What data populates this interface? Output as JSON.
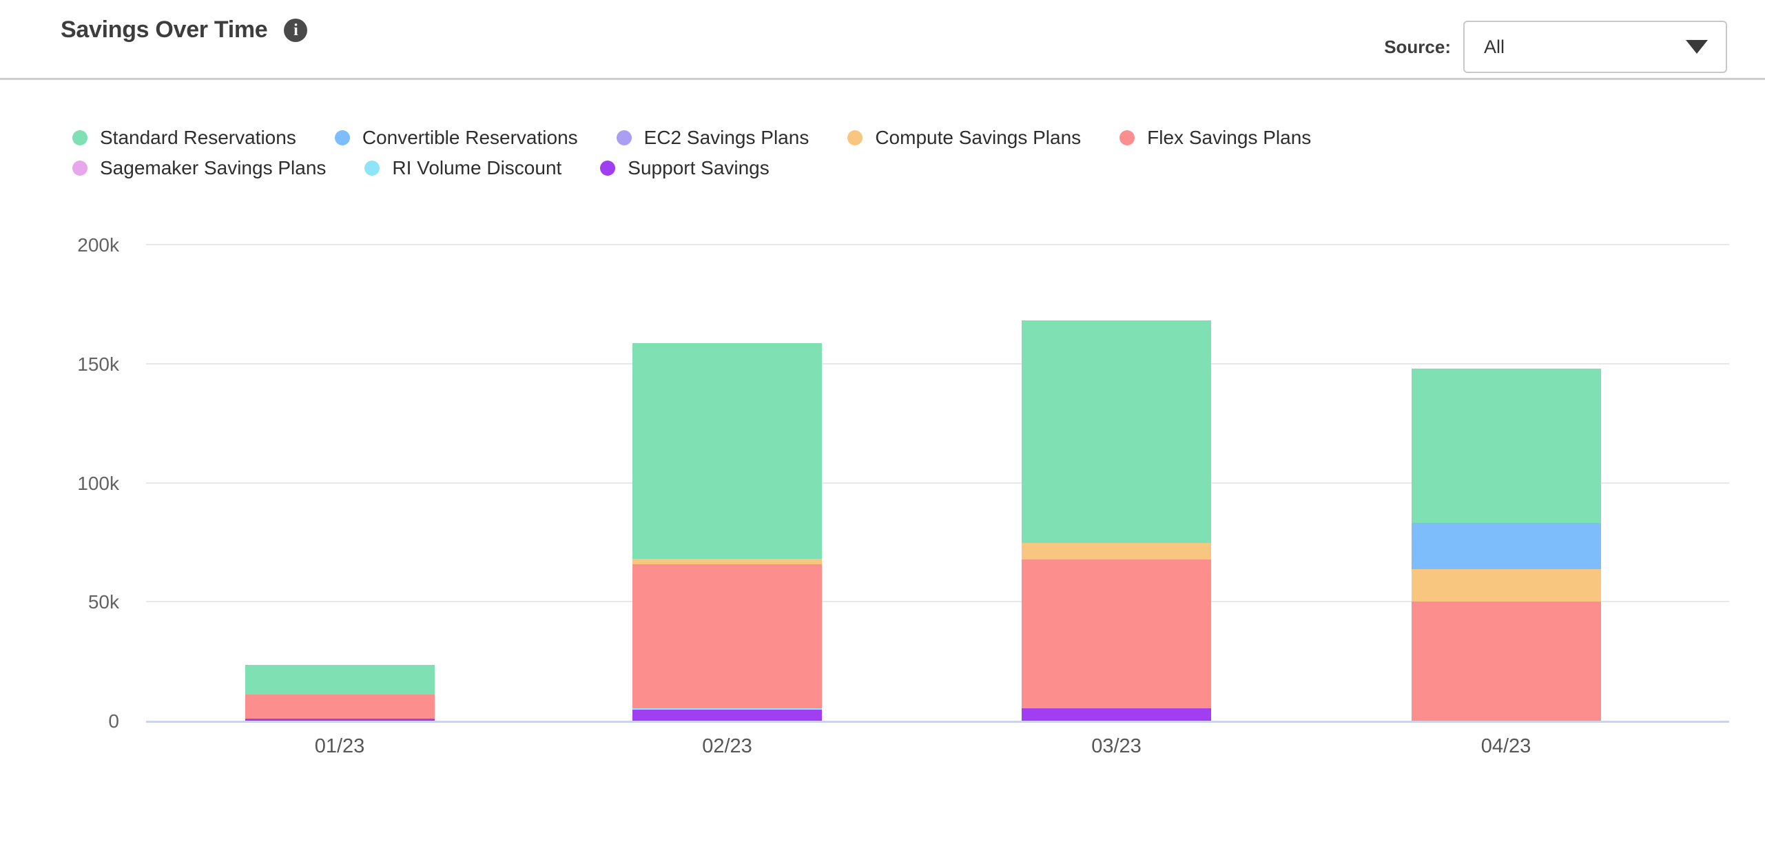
{
  "header": {
    "title": "Savings Over Time",
    "info_icon": "info-circle",
    "source_label": "Source:",
    "source_value": "All"
  },
  "chart_data": {
    "type": "bar",
    "stacked": true,
    "title": "Savings Over Time",
    "categories": [
      "01/23",
      "02/23",
      "03/23",
      "04/23"
    ],
    "series": [
      {
        "name": "Standard Reservations",
        "color": "#7ee0b3",
        "values_k": [
          12.4,
          90.6,
          93.5,
          64.7
        ]
      },
      {
        "name": "Convertible Reservations",
        "color": "#7dbdfc",
        "values_k": [
          0,
          0,
          0,
          19.4
        ]
      },
      {
        "name": "EC2 Savings Plans",
        "color": "#a99ef2",
        "values_k": [
          0,
          0,
          0,
          0
        ]
      },
      {
        "name": "Compute Savings Plans",
        "color": "#f9c680",
        "values_k": [
          0,
          2.4,
          7,
          13.7
        ]
      },
      {
        "name": "Flex Savings Plans",
        "color": "#fc8e8e",
        "values_k": [
          10,
          60.3,
          62.3,
          50
        ]
      },
      {
        "name": "Sagemaker Savings Plans",
        "color": "#e8a6ec",
        "values_k": [
          0,
          0,
          0,
          0
        ]
      },
      {
        "name": "RI Volume Discount",
        "color": "#8ee4f8",
        "values_k": [
          0,
          0.8,
          0,
          0
        ]
      },
      {
        "name": "Support Savings",
        "color": "#a13ef2",
        "values_k": [
          1,
          4.5,
          5.3,
          0
        ]
      }
    ],
    "stack_order_bottom_to_top": [
      7,
      6,
      5,
      4,
      3,
      2,
      1,
      0
    ],
    "totals_k": [
      23.4,
      158.6,
      168.1,
      147.8
    ],
    "yticks": [
      {
        "value_k": 0,
        "label": "0"
      },
      {
        "value_k": 50,
        "label": "50k"
      },
      {
        "value_k": 100,
        "label": "100k"
      },
      {
        "value_k": 150,
        "label": "150k"
      },
      {
        "value_k": 200,
        "label": "200k"
      }
    ],
    "ylim_k": [
      0,
      200
    ],
    "grid": true,
    "legend_position": "top-left",
    "legend_rows": [
      [
        0,
        1,
        2,
        3,
        4
      ],
      [
        5,
        6,
        7
      ]
    ]
  },
  "colors": {
    "axis_baseline": "#ccd3ea",
    "gridline": "#e8e8e8",
    "divider": "#cccccc",
    "title_text": "#3d3d3d",
    "legend_text": "#2e2e2e",
    "tick_text": "#636363",
    "dropdown_border": "#c8c8c8",
    "info_icon_bg": "#4a4a4a"
  }
}
